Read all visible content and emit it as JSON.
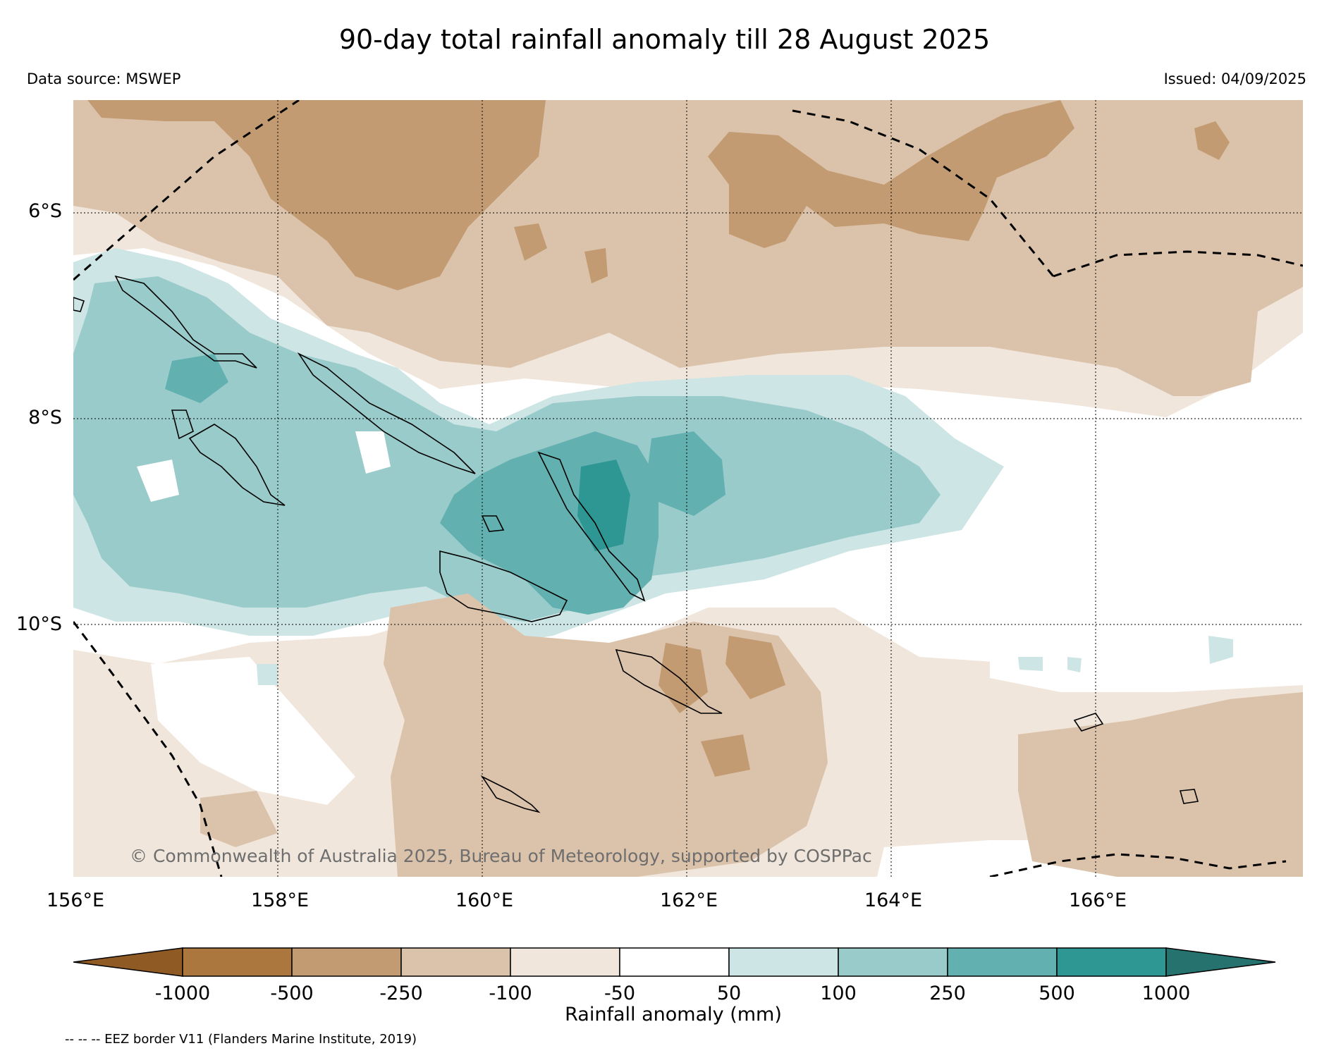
{
  "title": "90-day total rainfall anomaly till 28 August 2025",
  "data_source": "Data source: MSWEP",
  "issued": "Issued: 04/09/2025",
  "copyright": "© Commonwealth of Australia 2025, Bureau of Meteorology, supported by COSPPac",
  "eez_note": "-- -- -- EEZ border V11 (Flanders Marine Institute, 2019)",
  "latitude_labels": [
    "6°S",
    "8°S",
    "10°S"
  ],
  "longitude_labels": [
    "156°E",
    "158°E",
    "160°E",
    "162°E",
    "164°E",
    "166°E"
  ],
  "colorbar": {
    "label": "Rainfall anomaly (mm)",
    "ticks": [
      "-1000",
      "-500",
      "-250",
      "-100",
      "-50",
      "50",
      "100",
      "250",
      "500",
      "1000"
    ],
    "colors": [
      "#8f5a24",
      "#ab773f",
      "#c39b72",
      "#dbc2aa",
      "#f0e6dc",
      "#ffffff",
      "#cde5e4",
      "#9acbcb",
      "#63b0b0",
      "#2e9794",
      "#25726f"
    ],
    "extend": "both"
  },
  "map_extent": {
    "lon": [
      156,
      168
    ],
    "lat": [
      -4.9,
      -12.5
    ]
  },
  "gridlines": true
}
